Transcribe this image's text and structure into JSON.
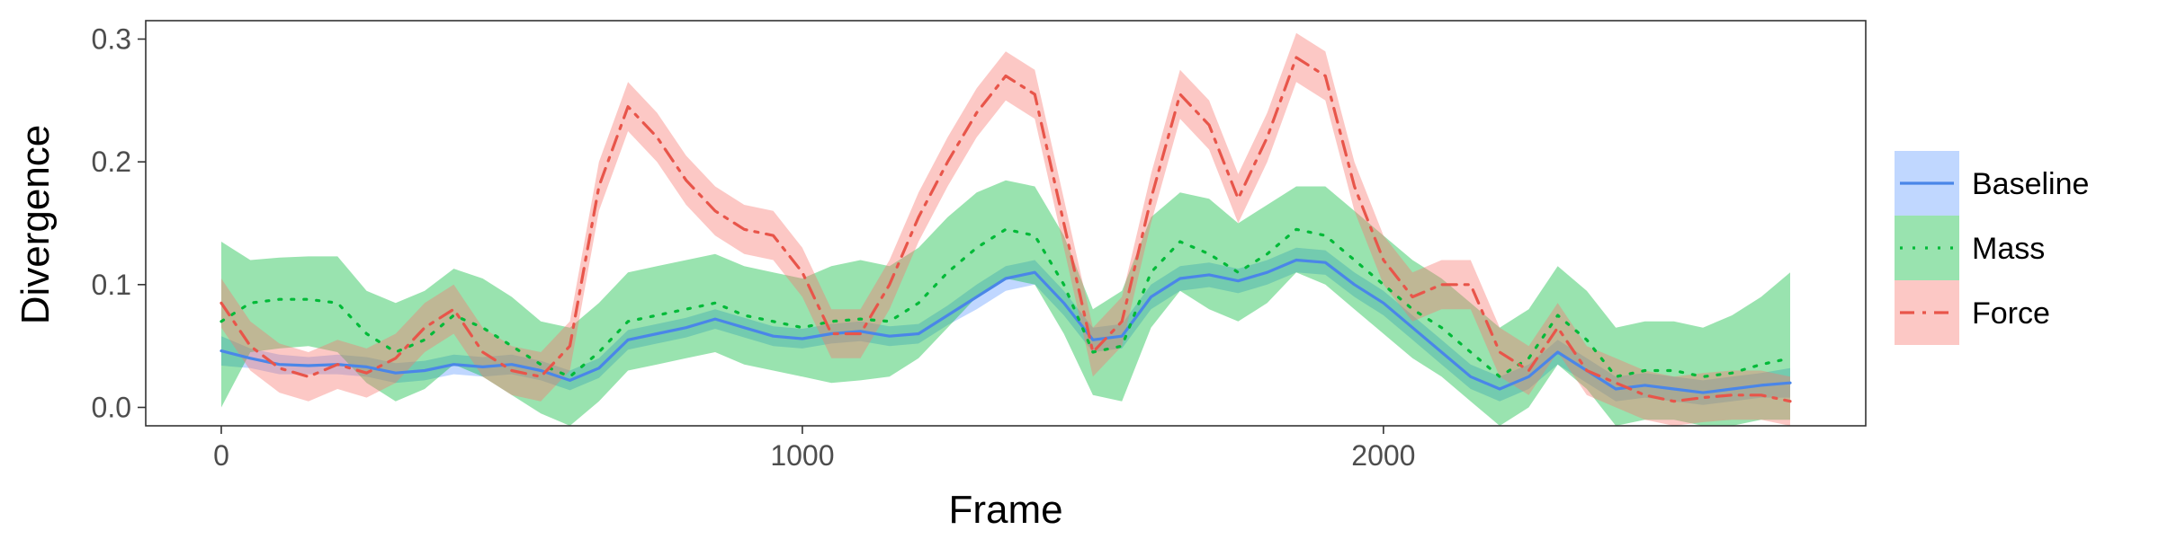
{
  "chart_data": {
    "type": "line",
    "title": "",
    "xlabel": "Frame",
    "ylabel": "Divergence",
    "xlim": [
      -130,
      2830
    ],
    "ylim": [
      -0.015,
      0.315
    ],
    "xticks": [
      0,
      1000,
      2000
    ],
    "xtick_labels": [
      "0",
      "1000",
      "2000"
    ],
    "yticks": [
      0.0,
      0.1,
      0.2,
      0.3
    ],
    "ytick_labels": [
      "0.0",
      "0.1",
      "0.2",
      "0.3"
    ],
    "grid": false,
    "legend": {
      "placement": "right",
      "entries": [
        "Baseline",
        "Mass",
        "Force"
      ]
    },
    "series": [
      {
        "name": "Baseline",
        "color": "#619CFF",
        "line_color": "#4A86E8",
        "dash": "solid",
        "x": [
          0,
          50,
          100,
          150,
          200,
          250,
          300,
          350,
          400,
          450,
          500,
          550,
          600,
          650,
          700,
          750,
          800,
          850,
          900,
          950,
          1000,
          1050,
          1100,
          1150,
          1200,
          1250,
          1300,
          1350,
          1400,
          1450,
          1500,
          1550,
          1600,
          1650,
          1700,
          1750,
          1800,
          1850,
          1900,
          1950,
          2000,
          2050,
          2100,
          2150,
          2200,
          2250,
          2300,
          2350,
          2400,
          2450,
          2500,
          2550,
          2600,
          2650,
          2700
        ],
        "y": [
          0.046,
          0.04,
          0.035,
          0.034,
          0.035,
          0.033,
          0.028,
          0.03,
          0.035,
          0.033,
          0.035,
          0.03,
          0.022,
          0.032,
          0.055,
          0.06,
          0.065,
          0.072,
          0.065,
          0.058,
          0.056,
          0.06,
          0.062,
          0.058,
          0.06,
          0.075,
          0.09,
          0.105,
          0.11,
          0.085,
          0.055,
          0.058,
          0.09,
          0.105,
          0.108,
          0.103,
          0.11,
          0.12,
          0.118,
          0.1,
          0.085,
          0.065,
          0.045,
          0.025,
          0.015,
          0.025,
          0.045,
          0.03,
          0.015,
          0.018,
          0.015,
          0.012,
          0.015,
          0.018,
          0.02
        ],
        "lower": [
          0.034,
          0.032,
          0.027,
          0.027,
          0.027,
          0.025,
          0.02,
          0.022,
          0.027,
          0.025,
          0.027,
          0.022,
          0.014,
          0.024,
          0.047,
          0.052,
          0.057,
          0.064,
          0.057,
          0.05,
          0.048,
          0.052,
          0.054,
          0.05,
          0.052,
          0.067,
          0.08,
          0.095,
          0.1,
          0.075,
          0.045,
          0.048,
          0.08,
          0.095,
          0.098,
          0.093,
          0.1,
          0.11,
          0.108,
          0.09,
          0.075,
          0.055,
          0.035,
          0.015,
          0.005,
          0.015,
          0.035,
          0.02,
          0.005,
          0.008,
          0.005,
          0.002,
          0.005,
          0.008,
          0.008
        ],
        "upper": [
          0.058,
          0.048,
          0.043,
          0.041,
          0.043,
          0.041,
          0.036,
          0.038,
          0.043,
          0.041,
          0.043,
          0.038,
          0.03,
          0.04,
          0.063,
          0.068,
          0.073,
          0.08,
          0.073,
          0.066,
          0.064,
          0.068,
          0.07,
          0.066,
          0.068,
          0.083,
          0.1,
          0.115,
          0.12,
          0.095,
          0.065,
          0.068,
          0.1,
          0.115,
          0.118,
          0.113,
          0.12,
          0.13,
          0.128,
          0.11,
          0.095,
          0.075,
          0.055,
          0.035,
          0.025,
          0.035,
          0.055,
          0.04,
          0.025,
          0.028,
          0.025,
          0.022,
          0.025,
          0.028,
          0.032
        ]
      },
      {
        "name": "Mass",
        "color": "#00BA38",
        "line_color": "#00BA38",
        "dash": "dotted",
        "x": [
          0,
          50,
          100,
          150,
          200,
          250,
          300,
          350,
          400,
          450,
          500,
          550,
          600,
          650,
          700,
          750,
          800,
          850,
          900,
          950,
          1000,
          1050,
          1100,
          1150,
          1200,
          1250,
          1300,
          1350,
          1400,
          1450,
          1500,
          1550,
          1600,
          1650,
          1700,
          1750,
          1800,
          1850,
          1900,
          1950,
          2000,
          2050,
          2100,
          2150,
          2200,
          2250,
          2300,
          2350,
          2400,
          2450,
          2500,
          2550,
          2600,
          2650,
          2700
        ],
        "y": [
          0.07,
          0.085,
          0.088,
          0.088,
          0.085,
          0.06,
          0.045,
          0.055,
          0.075,
          0.065,
          0.05,
          0.035,
          0.025,
          0.045,
          0.07,
          0.075,
          0.08,
          0.085,
          0.075,
          0.07,
          0.065,
          0.07,
          0.072,
          0.07,
          0.085,
          0.11,
          0.13,
          0.145,
          0.14,
          0.1,
          0.045,
          0.05,
          0.11,
          0.135,
          0.125,
          0.11,
          0.125,
          0.145,
          0.14,
          0.12,
          0.1,
          0.08,
          0.065,
          0.045,
          0.025,
          0.04,
          0.075,
          0.055,
          0.025,
          0.03,
          0.03,
          0.025,
          0.028,
          0.035,
          0.04
        ],
        "lower": [
          0.0,
          0.045,
          0.048,
          0.05,
          0.045,
          0.02,
          0.005,
          0.015,
          0.035,
          0.025,
          0.01,
          -0.005,
          -0.015,
          0.005,
          0.03,
          0.035,
          0.04,
          0.045,
          0.035,
          0.03,
          0.025,
          0.02,
          0.022,
          0.025,
          0.04,
          0.065,
          0.09,
          0.105,
          0.1,
          0.06,
          0.01,
          0.005,
          0.065,
          0.095,
          0.08,
          0.07,
          0.085,
          0.11,
          0.1,
          0.08,
          0.06,
          0.04,
          0.025,
          0.005,
          -0.015,
          0.0,
          0.035,
          0.015,
          -0.015,
          -0.01,
          -0.01,
          -0.015,
          -0.015,
          -0.01,
          -0.01
        ],
        "upper": [
          0.135,
          0.12,
          0.122,
          0.123,
          0.123,
          0.095,
          0.085,
          0.095,
          0.113,
          0.105,
          0.09,
          0.07,
          0.065,
          0.085,
          0.11,
          0.115,
          0.12,
          0.125,
          0.115,
          0.11,
          0.105,
          0.115,
          0.12,
          0.115,
          0.13,
          0.155,
          0.175,
          0.185,
          0.18,
          0.14,
          0.08,
          0.095,
          0.155,
          0.175,
          0.17,
          0.15,
          0.165,
          0.18,
          0.18,
          0.16,
          0.14,
          0.12,
          0.105,
          0.085,
          0.065,
          0.08,
          0.115,
          0.095,
          0.065,
          0.07,
          0.07,
          0.065,
          0.075,
          0.09,
          0.11
        ]
      },
      {
        "name": "Force",
        "color": "#F8766D",
        "line_color": "#E8554A",
        "dash": "dashdot",
        "x": [
          0,
          50,
          100,
          150,
          200,
          250,
          300,
          350,
          400,
          450,
          500,
          550,
          600,
          650,
          700,
          750,
          800,
          850,
          900,
          950,
          1000,
          1050,
          1100,
          1150,
          1200,
          1250,
          1300,
          1350,
          1400,
          1450,
          1500,
          1550,
          1600,
          1650,
          1700,
          1750,
          1800,
          1850,
          1900,
          1950,
          2000,
          2050,
          2100,
          2150,
          2200,
          2250,
          2300,
          2350,
          2400,
          2450,
          2500,
          2550,
          2600,
          2650,
          2700
        ],
        "y": [
          0.085,
          0.05,
          0.032,
          0.025,
          0.035,
          0.028,
          0.04,
          0.065,
          0.08,
          0.045,
          0.03,
          0.025,
          0.05,
          0.18,
          0.245,
          0.22,
          0.185,
          0.16,
          0.145,
          0.14,
          0.11,
          0.06,
          0.06,
          0.1,
          0.155,
          0.2,
          0.24,
          0.27,
          0.255,
          0.15,
          0.045,
          0.07,
          0.17,
          0.255,
          0.23,
          0.17,
          0.22,
          0.285,
          0.27,
          0.18,
          0.12,
          0.09,
          0.1,
          0.1,
          0.045,
          0.03,
          0.065,
          0.03,
          0.02,
          0.01,
          0.005,
          0.008,
          0.01,
          0.01,
          0.005
        ],
        "lower": [
          0.065,
          0.03,
          0.012,
          0.005,
          0.015,
          0.008,
          0.02,
          0.045,
          0.06,
          0.025,
          0.01,
          0.005,
          0.03,
          0.16,
          0.225,
          0.2,
          0.165,
          0.14,
          0.125,
          0.12,
          0.09,
          0.04,
          0.04,
          0.08,
          0.135,
          0.18,
          0.22,
          0.25,
          0.235,
          0.13,
          0.025,
          0.05,
          0.15,
          0.235,
          0.21,
          0.15,
          0.2,
          0.265,
          0.25,
          0.16,
          0.1,
          0.07,
          0.08,
          0.08,
          0.025,
          0.01,
          0.045,
          0.01,
          0.0,
          -0.01,
          -0.015,
          -0.012,
          -0.01,
          -0.01,
          -0.015
        ],
        "upper": [
          0.105,
          0.07,
          0.052,
          0.045,
          0.055,
          0.048,
          0.06,
          0.085,
          0.1,
          0.065,
          0.05,
          0.045,
          0.07,
          0.2,
          0.265,
          0.24,
          0.205,
          0.18,
          0.165,
          0.16,
          0.13,
          0.08,
          0.08,
          0.12,
          0.175,
          0.22,
          0.26,
          0.29,
          0.275,
          0.17,
          0.065,
          0.09,
          0.19,
          0.275,
          0.25,
          0.19,
          0.24,
          0.305,
          0.29,
          0.2,
          0.14,
          0.11,
          0.12,
          0.12,
          0.065,
          0.05,
          0.085,
          0.05,
          0.04,
          0.03,
          0.025,
          0.028,
          0.03,
          0.03,
          0.025
        ]
      }
    ]
  }
}
